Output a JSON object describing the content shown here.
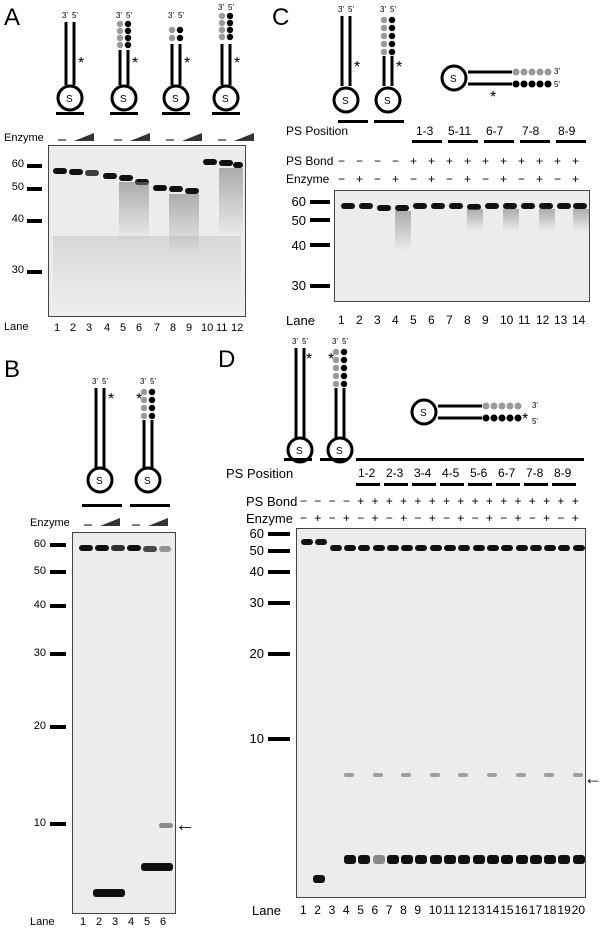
{
  "panels": {
    "A": {
      "letter": "A",
      "enzyme_label": "Enzyme",
      "minus_sign": "–",
      "markers": [
        "60",
        "50",
        "40",
        "30"
      ],
      "lane_label": "Lane",
      "lanes": [
        "1",
        "2",
        "3",
        "4",
        "5",
        "6",
        "7",
        "8",
        "9",
        "10",
        "11",
        "12"
      ]
    },
    "B": {
      "letter": "B",
      "enzyme_label": "Enzyme",
      "minus_sign": "–",
      "markers": [
        "60",
        "50",
        "40",
        "30",
        "20",
        "10"
      ],
      "lane_label": "Lane",
      "lanes": [
        "1",
        "2",
        "3",
        "4",
        "5",
        "6"
      ]
    },
    "C": {
      "letter": "C",
      "ps_position_label": "PS Position",
      "ps_positions": [
        "1-3",
        "5-11",
        "6-7",
        "7-8",
        "8-9"
      ],
      "ps_bond_label": "PS Bond",
      "enzyme_label": "Enzyme",
      "ps_bond_row": [
        "−",
        "−",
        "−",
        "−",
        "+",
        "+",
        "+",
        "+",
        "+",
        "+",
        "+",
        "+",
        "+",
        "+"
      ],
      "enzyme_row": [
        "−",
        "+",
        "−",
        "+",
        "−",
        "+",
        "−",
        "+",
        "−",
        "+",
        "−",
        "+",
        "−",
        "+"
      ],
      "markers": [
        "60",
        "50",
        "40",
        "30"
      ],
      "lane_label": "Lane",
      "lanes": [
        "1",
        "2",
        "3",
        "4",
        "5",
        "6",
        "7",
        "8",
        "9",
        "10",
        "11",
        "12",
        "13",
        "14"
      ]
    },
    "D": {
      "letter": "D",
      "ps_position_label": "PS Position",
      "ps_positions": [
        "1-2",
        "2-3",
        "3-4",
        "4-5",
        "5-6",
        "6-7",
        "7-8",
        "8-9"
      ],
      "ps_bond_label": "PS Bond",
      "enzyme_label": "Enzyme",
      "ps_bond_row": [
        "−",
        "−",
        "−",
        "−",
        "+",
        "+",
        "+",
        "+",
        "+",
        "+",
        "+",
        "+",
        "+",
        "+",
        "+",
        "+",
        "+",
        "+",
        "+",
        "+"
      ],
      "enzyme_row": [
        "−",
        "+",
        "−",
        "+",
        "−",
        "+",
        "−",
        "+",
        "−",
        "+",
        "−",
        "+",
        "−",
        "+",
        "−",
        "+",
        "−",
        "+",
        "−",
        "+"
      ],
      "markers": [
        "60",
        "50",
        "40",
        "30",
        "20",
        "10"
      ],
      "lane_label": "Lane",
      "lanes": [
        "1",
        "2",
        "3",
        "4",
        "5",
        "6",
        "7",
        "8",
        "9",
        "10",
        "11",
        "12",
        "13",
        "14",
        "15",
        "16",
        "17",
        "18",
        "19",
        "20"
      ]
    }
  },
  "strand_labels": {
    "three_prime": "3'",
    "five_prime": "5'",
    "s_label": "S",
    "star": "*"
  },
  "arrow_glyph": "←"
}
